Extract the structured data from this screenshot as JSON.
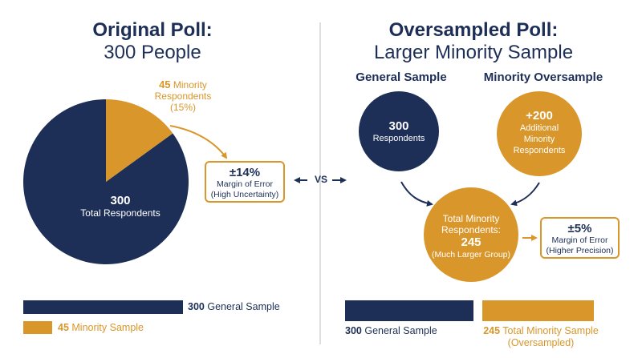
{
  "left": {
    "title_line1": "Original Poll:",
    "title_line2": "300 People",
    "pie": {
      "total": 300,
      "minority": 45,
      "minority_pct": 15
    },
    "minority_label_num": "45",
    "minority_label_text": "Minority",
    "minority_label_line2": "Respondents",
    "minority_label_line3": "(15%)",
    "total_num": "300",
    "total_label": "Total Respondents",
    "moe_value": "±14%",
    "moe_line1": "Margin of Error",
    "moe_line2": "(High Uncertainty)",
    "bar1_num": "300",
    "bar1_label": "General Sample",
    "bar2_num": "45",
    "bar2_label": "Minority Sample"
  },
  "vs_label": "VS",
  "right": {
    "title_line1": "Oversampled Poll:",
    "title_line2": "Larger Minority Sample",
    "general_heading": "General Sample",
    "oversample_heading": "Minority Oversample",
    "general_num": "300",
    "general_label": "Respondents",
    "over_num": "+200",
    "over_line1": "Additional",
    "over_line2": "Minority",
    "over_line3": "Respondents",
    "total_line1": "Total Minority",
    "total_line2": "Respondents:",
    "total_num": "245",
    "total_line3": "(Much Larger Group)",
    "moe_value": "±5%",
    "moe_line1": "Margin of Error",
    "moe_line2": "(Higher Precision)",
    "bar1_num": "300",
    "bar1_label": "General Sample",
    "bar2_num": "245",
    "bar2_label": "Total Minority Sample",
    "bar2_label2": "(Oversampled)"
  },
  "colors": {
    "navy": "#1d2f57",
    "gold": "#d9962a",
    "divider": "#c9c9c9"
  }
}
